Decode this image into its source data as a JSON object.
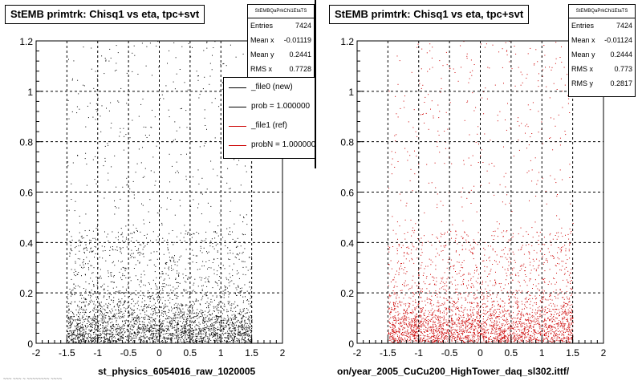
{
  "footer_text": "~~~ ~~~ ~ ~~~~~~~~ ~~~~",
  "panels": [
    {
      "title": "StEMB primtrk: Chisq1 vs eta, tpc+svt",
      "stats": {
        "name": "StEMBQaPrkChi1EtaTS",
        "rows": [
          {
            "label": "Entries",
            "value": "7424"
          },
          {
            "label": "Mean x",
            "value": "-0.01119"
          },
          {
            "label": "Mean y",
            "value": "0.2441"
          },
          {
            "label": "RMS x",
            "value": "0.7728"
          }
        ]
      },
      "legend": [
        {
          "label": "_file0 (new)",
          "color": "#000000"
        },
        {
          "label": "prob = 1.000000",
          "color": "#000000"
        },
        {
          "label": "_file1 (ref)",
          "color": "#cc0000"
        },
        {
          "label": "probN = 1.000000",
          "color": "#cc0000"
        }
      ],
      "file_label": "st_physics_6054016_raw_1020005"
    },
    {
      "title": "StEMB primtrk: Chisq1 vs eta, tpc+svt",
      "stats": {
        "name": "StEMBQaPrkChi1EtaTS",
        "rows": [
          {
            "label": "Entries",
            "value": "7424"
          },
          {
            "label": "Mean x",
            "value": "-0.01124"
          },
          {
            "label": "Mean y",
            "value": "0.2444"
          },
          {
            "label": "RMS x",
            "value": "0.773"
          },
          {
            "label": "RMS y",
            "value": "0.2817"
          }
        ]
      },
      "file_label": "on/year_2005_CuCu200_HighTower_daq_sl302.ittf/"
    }
  ],
  "chart_data": [
    {
      "type": "scatter",
      "title": "StEMB primtrk: Chisq1 vs eta, tpc+svt",
      "xlim": [
        -2,
        2
      ],
      "ylim": [
        0,
        1.2
      ],
      "xticks": [
        "-2",
        "-1.5",
        "-1",
        "-0.5",
        "0",
        "0.5",
        "1",
        "1.5",
        "2"
      ],
      "yticks": [
        "0",
        "0.2",
        "0.4",
        "0.6",
        "0.8",
        "1",
        "1.2"
      ],
      "grid": true,
      "point_color": "#000000",
      "distribution": {
        "x_range": [
          -1.5,
          1.5
        ],
        "entries": 7424,
        "mean_x": -0.01119,
        "mean_y": 0.2441,
        "rms_x": 0.7728
      },
      "series": [
        {
          "name": "_file0 (new)",
          "color": "#000000"
        },
        {
          "name": "_file1 (ref)",
          "color": "#cc0000"
        }
      ],
      "legend_position": "top-right"
    },
    {
      "type": "scatter",
      "title": "StEMB primtrk: Chisq1 vs eta, tpc+svt",
      "xlim": [
        -2,
        2
      ],
      "ylim": [
        0,
        1.2
      ],
      "xticks": [
        "-2",
        "-1.5",
        "-1",
        "-0.5",
        "0",
        "0.5",
        "1",
        "1.5",
        "2"
      ],
      "yticks": [
        "0",
        "0.2",
        "0.4",
        "0.6",
        "0.8",
        "1",
        "1.2"
      ],
      "grid": true,
      "point_color": "#cc0000",
      "distribution": {
        "x_range": [
          -1.5,
          1.5
        ],
        "entries": 7424,
        "mean_x": -0.01124,
        "mean_y": 0.2444,
        "rms_x": 0.773,
        "rms_y": 0.2817
      }
    }
  ]
}
